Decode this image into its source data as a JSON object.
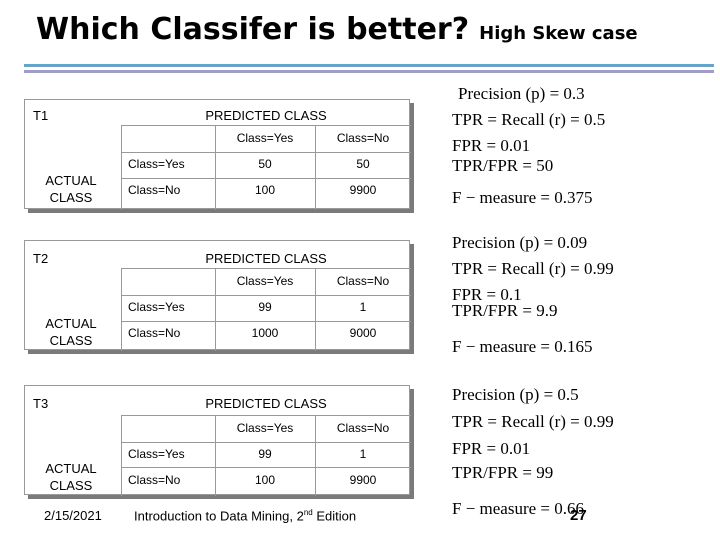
{
  "title": {
    "main": "Which Classifer is better?",
    "sub": "High Skew case"
  },
  "headers": {
    "predicted": "PREDICTED CLASS",
    "actual": "ACTUAL CLASS",
    "col_yes": "Class=Yes",
    "col_no": "Class=No",
    "row_yes": "Class=Yes",
    "row_no": "Class=No"
  },
  "matrices": [
    {
      "name": "T1",
      "tp": "50",
      "fn": "50",
      "fp": "100",
      "tn": "9900"
    },
    {
      "name": "T2",
      "tp": "99",
      "fn": "1",
      "fp": "1000",
      "tn": "9000"
    },
    {
      "name": "T3",
      "tp": "99",
      "fn": "1",
      "fp": "100",
      "tn": "9900"
    }
  ],
  "metrics": [
    {
      "precision": "Precision (p) = 0.3",
      "tpr": "TPR = Recall (r) = 0.5",
      "fpr": "FPR = 0.01",
      "ratio": "TPR/FPR = 50",
      "f": "F − measure = 0.375"
    },
    {
      "precision": "Precision (p) = 0.09",
      "tpr": "TPR = Recall (r) = 0.99",
      "fpr": "FPR = 0.1",
      "ratio": "TPR/FPR = 9.9",
      "f": "F − measure = 0.165"
    },
    {
      "precision": "Precision (p) = 0.5",
      "tpr": "TPR = Recall (r) = 0.99",
      "fpr": "FPR = 0.01",
      "ratio": "TPR/FPR = 99",
      "f": "F − measure = 0.66"
    }
  ],
  "footer": {
    "date": "2/15/2021",
    "source": "Introduction to Data Mining, 2",
    "source_sup": "nd",
    "source_end": " Edition",
    "page": "27"
  }
}
